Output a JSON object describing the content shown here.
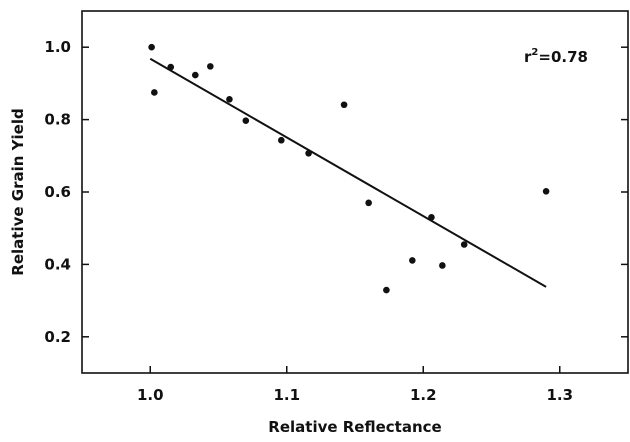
{
  "chart_data": {
    "type": "scatter",
    "xlabel": "Relative Reflectance",
    "ylabel": "Relative Grain Yield",
    "xlim": [
      0.95,
      1.35
    ],
    "ylim": [
      0.1,
      1.1
    ],
    "x_ticks": [
      1.0,
      1.1,
      1.2,
      1.3
    ],
    "x_tick_labels": [
      "1.0",
      "1.1",
      "1.2",
      "1.3"
    ],
    "y_ticks": [
      0.2,
      0.4,
      0.6,
      0.8,
      1.0
    ],
    "y_tick_labels": [
      "0.2",
      "0.4",
      "0.6",
      "0.8",
      "1.0"
    ],
    "grid": false,
    "points": [
      {
        "x": 1.001,
        "y": 1.0
      },
      {
        "x": 1.003,
        "y": 0.875
      },
      {
        "x": 1.015,
        "y": 0.945
      },
      {
        "x": 1.033,
        "y": 0.923
      },
      {
        "x": 1.044,
        "y": 0.947
      },
      {
        "x": 1.058,
        "y": 0.856
      },
      {
        "x": 1.07,
        "y": 0.797
      },
      {
        "x": 1.096,
        "y": 0.743
      },
      {
        "x": 1.116,
        "y": 0.707
      },
      {
        "x": 1.142,
        "y": 0.841
      },
      {
        "x": 1.16,
        "y": 0.57
      },
      {
        "x": 1.173,
        "y": 0.329
      },
      {
        "x": 1.192,
        "y": 0.411
      },
      {
        "x": 1.206,
        "y": 0.53
      },
      {
        "x": 1.214,
        "y": 0.397
      },
      {
        "x": 1.23,
        "y": 0.455
      },
      {
        "x": 1.29,
        "y": 0.602
      }
    ],
    "fit_line": {
      "x": [
        1.0,
        1.29
      ],
      "y": [
        0.968,
        0.338
      ]
    },
    "annotation": {
      "prefix": "r",
      "superscript": "2",
      "suffix": "=0.78"
    }
  }
}
